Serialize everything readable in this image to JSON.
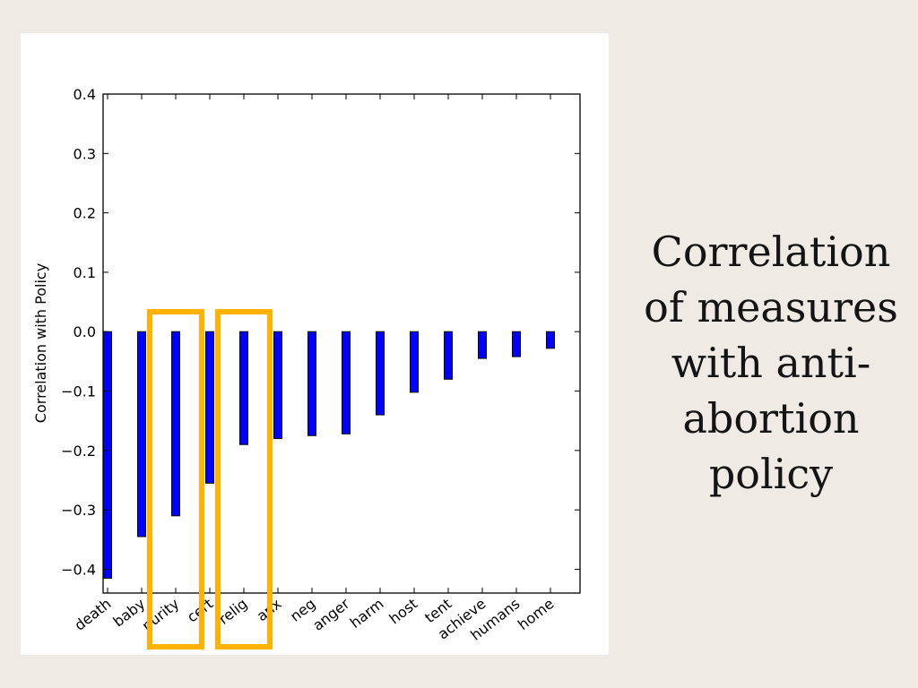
{
  "slide": {
    "title": "Correlation of measures with anti-abortion policy"
  },
  "highlight_color": "#ffb300",
  "bar_color": "#0000ff",
  "highlighted_categories": [
    "purity",
    "relig"
  ],
  "chart_data": {
    "type": "bar",
    "categories": [
      "death",
      "baby",
      "purity",
      "cert",
      "relig",
      "anx",
      "neg",
      "anger",
      "harm",
      "host",
      "tent",
      "achieve",
      "humans",
      "home"
    ],
    "values": [
      -0.415,
      -0.345,
      -0.31,
      -0.255,
      -0.19,
      -0.18,
      -0.175,
      -0.172,
      -0.14,
      -0.102,
      -0.08,
      -0.045,
      -0.042,
      -0.028
    ],
    "ylabel": "Correlation with Policy",
    "xlabel": "",
    "ylim": [
      -0.44,
      0.4
    ],
    "yticks": [
      "0.4",
      "0.3",
      "0.2",
      "0.1",
      "0.0",
      "−0.1",
      "−0.2",
      "−0.3",
      "−0.4"
    ],
    "ytick_values": [
      0.4,
      0.3,
      0.2,
      0.1,
      0.0,
      -0.1,
      -0.2,
      -0.3,
      -0.4
    ],
    "grid": false
  }
}
